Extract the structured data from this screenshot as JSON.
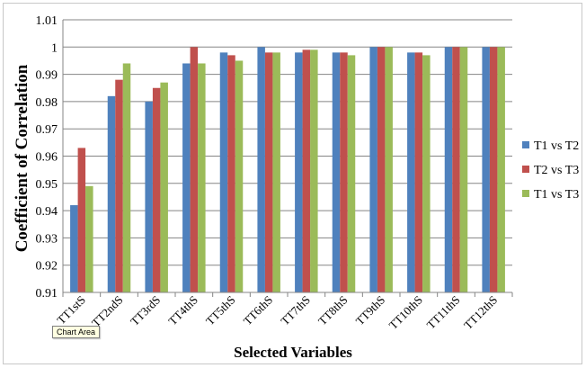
{
  "chart_data": {
    "type": "bar",
    "title": "",
    "xlabel": "Selected Variables",
    "ylabel": "Coefficient of Correlation",
    "ylim": [
      0.91,
      1.01
    ],
    "yticks": [
      "0.91",
      "0.92",
      "0.93",
      "0.94",
      "0.95",
      "0.96",
      "0.97",
      "0.98",
      "0.99",
      "1",
      "1.01"
    ],
    "categories": [
      "TT1stS",
      "TT2ndS",
      "TT3rdS",
      "TT4thS",
      "TT5thS",
      "TT6thS",
      "TT7thS",
      "TT8thS",
      "TT9thS",
      "TT10thS",
      "TT11thS",
      "TT12thS"
    ],
    "series": [
      {
        "name": "T1 vs T2",
        "color": "#4f81bd",
        "values": [
          0.942,
          0.982,
          0.98,
          0.994,
          0.998,
          1.0,
          0.998,
          0.998,
          1.0,
          0.998,
          1.0,
          1.0
        ]
      },
      {
        "name": "T2 vs T3",
        "color": "#c0504d",
        "values": [
          0.963,
          0.988,
          0.985,
          1.0,
          0.997,
          0.998,
          0.999,
          0.998,
          1.0,
          0.998,
          1.0,
          1.0
        ]
      },
      {
        "name": "T1 vs T3",
        "color": "#9bbb59",
        "values": [
          0.949,
          0.994,
          0.987,
          0.994,
          0.995,
          0.998,
          0.999,
          0.997,
          1.0,
          0.997,
          1.0,
          1.0
        ]
      }
    ],
    "grid": true,
    "legend_position": "right"
  },
  "tooltip": {
    "label": "Chart Area"
  }
}
